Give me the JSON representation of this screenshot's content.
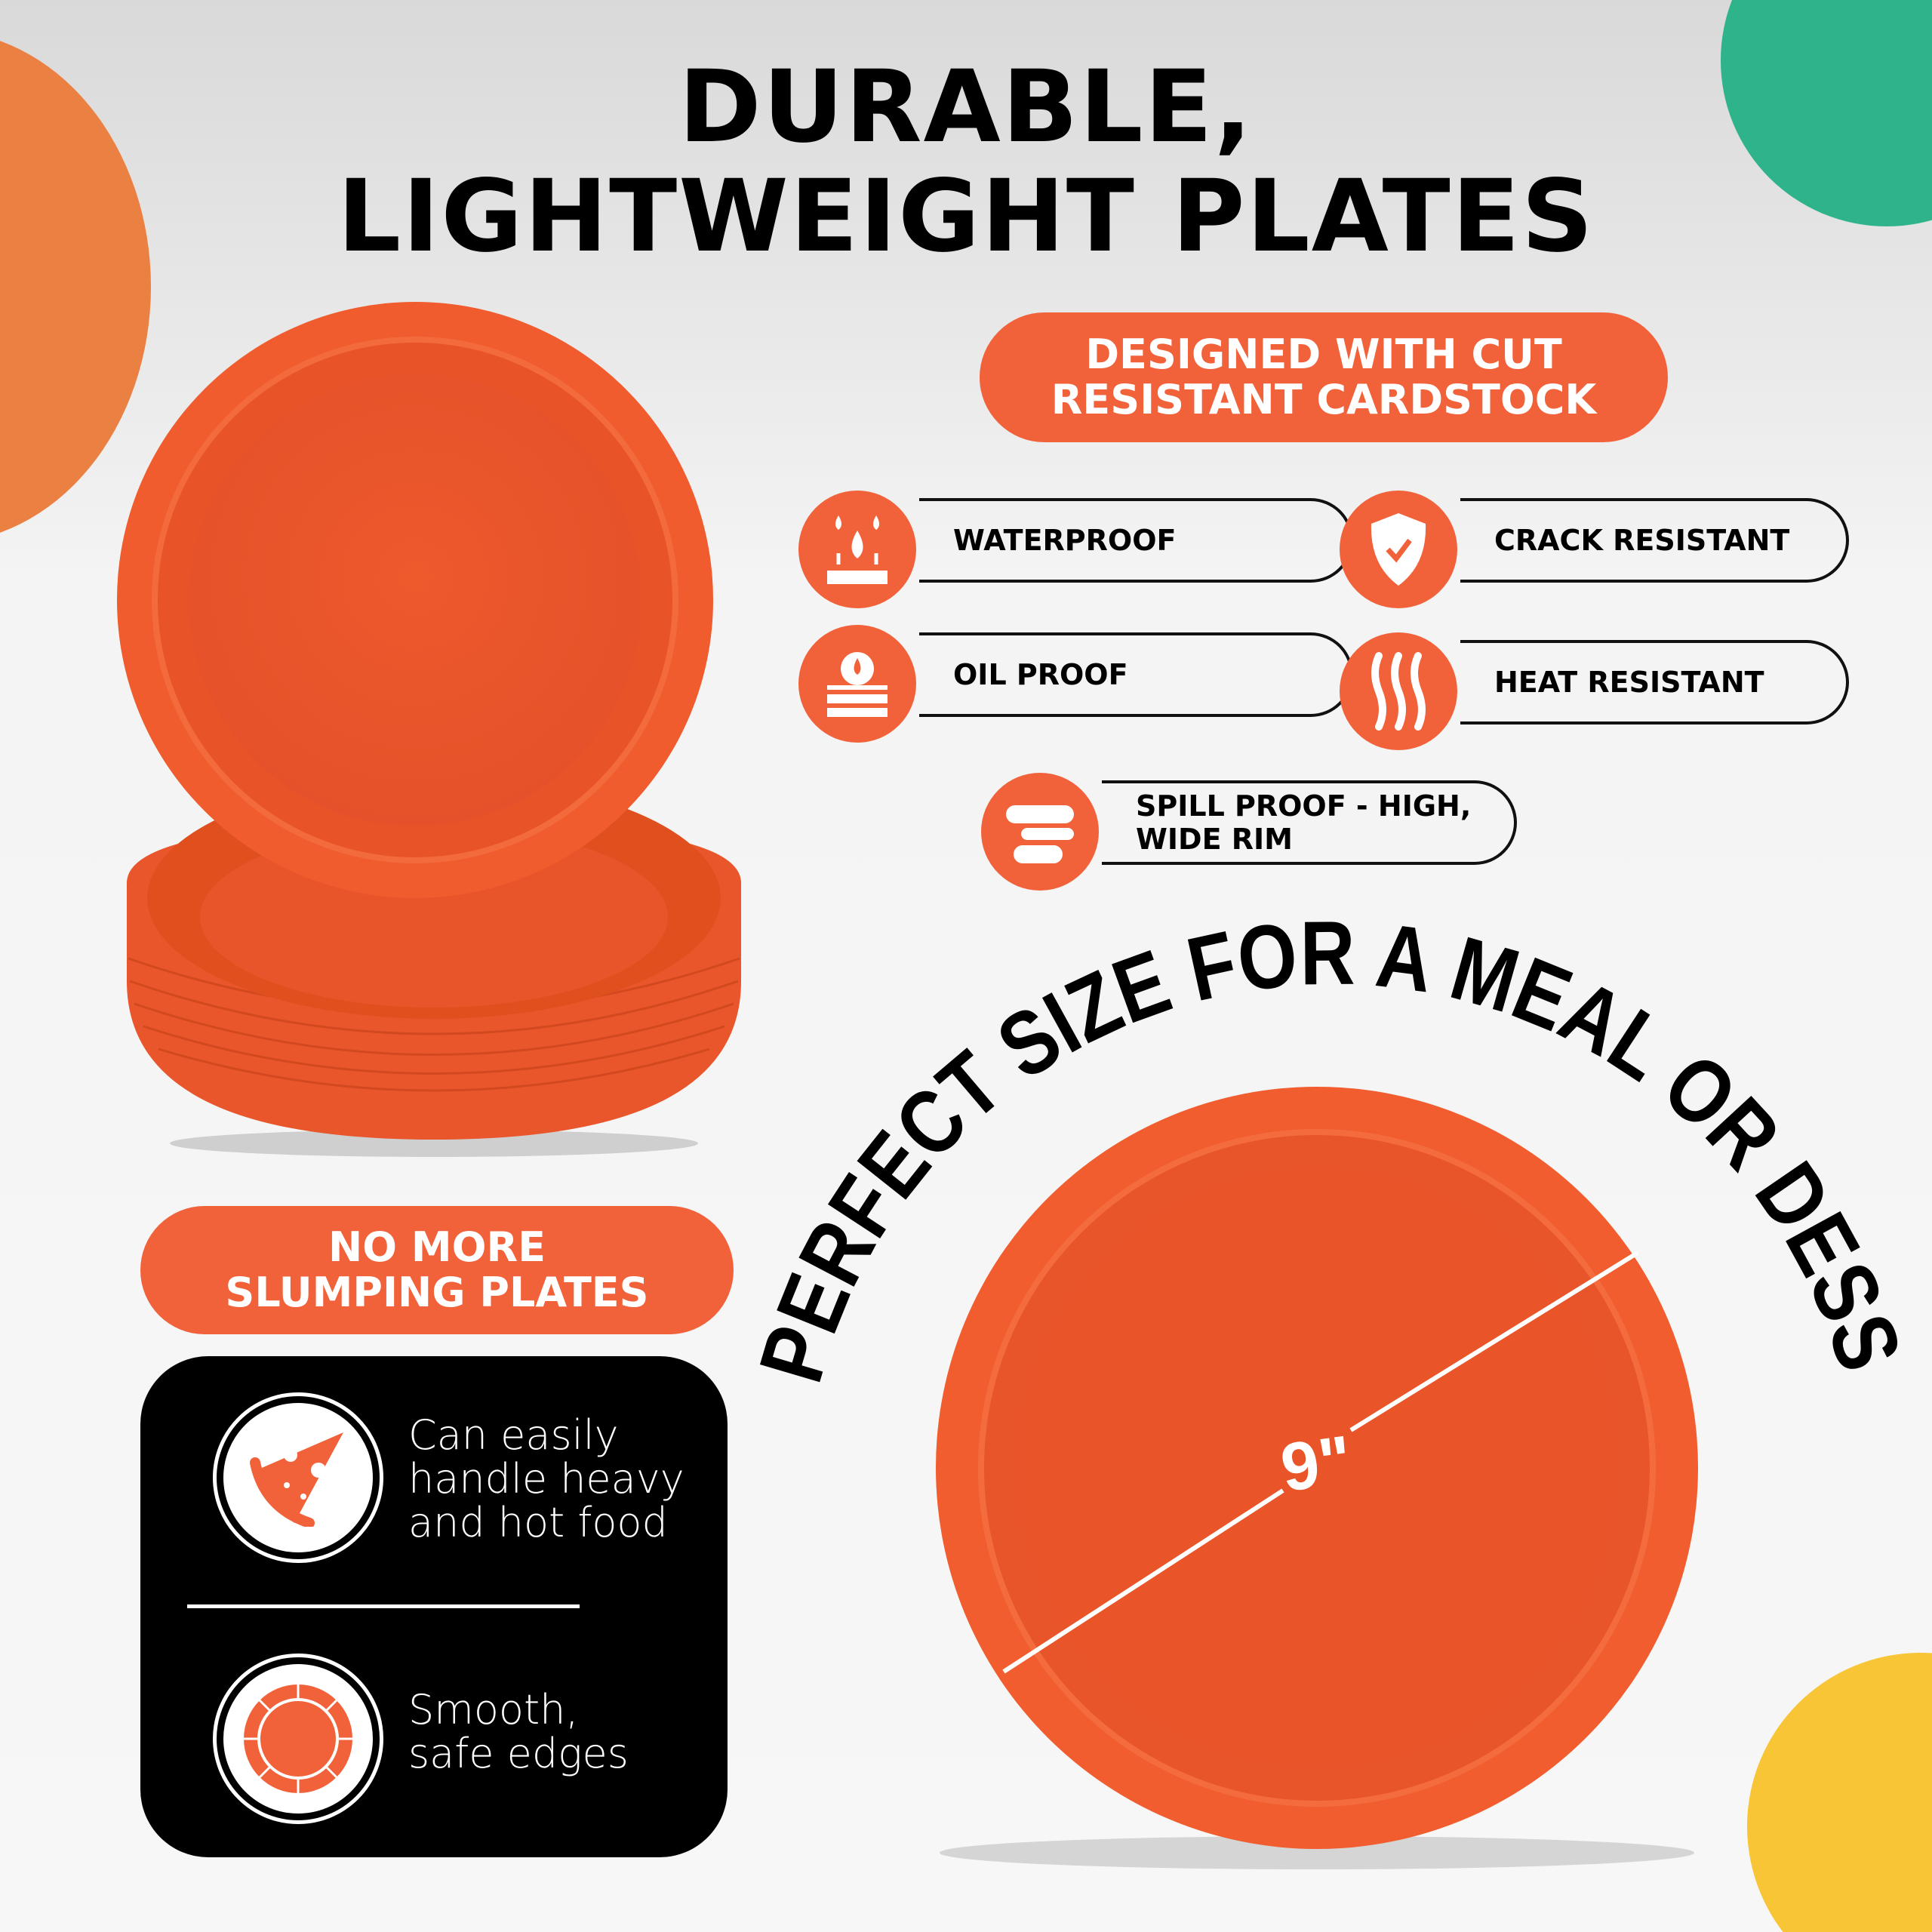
{
  "headline": {
    "line1": "DURABLE,",
    "line2": "LIGHTWEIGHT PLATES"
  },
  "badge_top": {
    "line1": "DESIGNED WITH CUT",
    "line2": "RESISTANT CARDSTOCK"
  },
  "features": [
    {
      "label": "WATERPROOF",
      "icon": "water-drop-icon"
    },
    {
      "label": "CRACK RESISTANT",
      "icon": "shield-check-icon"
    },
    {
      "label": "OIL PROOF",
      "icon": "oil-drop-icon"
    },
    {
      "label": "HEAT RESISTANT",
      "icon": "heat-waves-icon"
    },
    {
      "label": "SPILL PROOF - HIGH, WIDE RIM",
      "icon": "plate-rim-icon"
    }
  ],
  "badge_left": {
    "line1": "NO MORE",
    "line2": "SLUMPING PLATES"
  },
  "benefits": [
    {
      "lines": [
        "Can easily",
        "handle heavy",
        "and hot food"
      ],
      "icon": "pizza-icon"
    },
    {
      "lines": [
        "Smooth,",
        "safe edges"
      ],
      "icon": "plate-edge-icon"
    }
  ],
  "arc_text": "PERFECT SIZE FOR A MEAL OR DESSERT",
  "size_label": "9\"",
  "colors": {
    "accent": "#f2623a",
    "plate": "#e9552a",
    "orange_circle": "#ea8143",
    "green_circle": "#2fb38a",
    "yellow_circle": "#f7c535",
    "black": "#000000"
  }
}
